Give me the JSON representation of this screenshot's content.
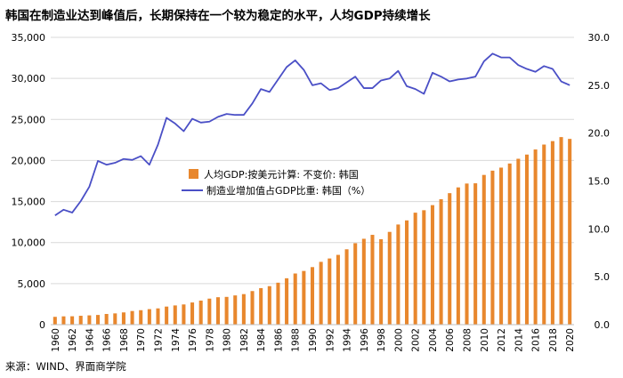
{
  "chart_data": {
    "type": "bar+line",
    "title": "韩国在制造业达到峰值后，长期保持在一个较为稳定的水平，人均GDP持续增长",
    "source": "来源：WIND、界面商学院",
    "x": [
      "1960",
      "1961",
      "1962",
      "1963",
      "1964",
      "1965",
      "1966",
      "1967",
      "1968",
      "1969",
      "1970",
      "1971",
      "1972",
      "1973",
      "1974",
      "1975",
      "1976",
      "1977",
      "1978",
      "1979",
      "1980",
      "1981",
      "1982",
      "1983",
      "1984",
      "1985",
      "1986",
      "1987",
      "1988",
      "1989",
      "1990",
      "1991",
      "1992",
      "1993",
      "1994",
      "1995",
      "1996",
      "1997",
      "1998",
      "1999",
      "2000",
      "2001",
      "2002",
      "2003",
      "2004",
      "2005",
      "2006",
      "2007",
      "2008",
      "2009",
      "2010",
      "2011",
      "2012",
      "2013",
      "2014",
      "2015",
      "2016",
      "2017",
      "2018",
      "2019",
      "2020"
    ],
    "x_tick_labels": [
      "1960",
      "1962",
      "1964",
      "1966",
      "1968",
      "1970",
      "1972",
      "1974",
      "1976",
      "1978",
      "1980",
      "1982",
      "1984",
      "1986",
      "1988",
      "1990",
      "1992",
      "1994",
      "1996",
      "1998",
      "2000",
      "2002",
      "2004",
      "2006",
      "2008",
      "2010",
      "2012",
      "2014",
      "2016",
      "2018",
      "2020"
    ],
    "series": [
      {
        "name": "人均GDP:按美元计算: 不变价: 韩国",
        "type": "bar",
        "axis": "left",
        "color": "#E8872D",
        "values": [
          950,
          1010,
          1020,
          1080,
          1130,
          1180,
          1300,
          1370,
          1490,
          1660,
          1760,
          1890,
          1980,
          2200,
          2340,
          2460,
          2700,
          2930,
          3170,
          3340,
          3380,
          3560,
          3720,
          4090,
          4450,
          4690,
          5110,
          5650,
          6230,
          6540,
          7010,
          7650,
          8060,
          8500,
          9180,
          9920,
          10460,
          10940,
          10410,
          11300,
          12200,
          12700,
          13640,
          13940,
          14560,
          15280,
          16020,
          16720,
          17190,
          17220,
          18240,
          18760,
          19130,
          19630,
          20210,
          20720,
          21340,
          21940,
          22360,
          22850,
          22630
        ]
      },
      {
        "name": "制造业增加值占GDP比重: 韩国（%）",
        "type": "line",
        "axis": "right",
        "color": "#4A4FC6",
        "values": [
          11.4,
          12.0,
          11.7,
          12.9,
          14.4,
          17.1,
          16.7,
          16.9,
          17.3,
          17.2,
          17.6,
          16.7,
          18.8,
          21.6,
          21.0,
          20.2,
          21.5,
          21.1,
          21.2,
          21.7,
          22.0,
          21.9,
          21.9,
          23.1,
          24.6,
          24.3,
          25.6,
          26.9,
          27.6,
          26.6,
          25.0,
          25.2,
          24.5,
          24.7,
          25.3,
          25.9,
          24.7,
          24.7,
          25.5,
          25.7,
          26.5,
          24.9,
          24.6,
          24.1,
          26.3,
          25.9,
          25.4,
          25.6,
          25.7,
          25.9,
          27.5,
          28.3,
          27.9,
          27.9,
          27.1,
          26.7,
          26.4,
          27.0,
          26.7,
          25.4,
          25.0
        ]
      }
    ],
    "y_left": {
      "min": 0,
      "max": 35000,
      "ticks": [
        "0",
        "5,000",
        "10,000",
        "15,000",
        "20,000",
        "25,000",
        "30,000",
        "35,000"
      ]
    },
    "y_right": {
      "min": 0,
      "max": 30,
      "ticks": [
        "0.0",
        "5.0",
        "10.0",
        "15.0",
        "20.0",
        "25.0",
        "30.0"
      ]
    },
    "grid": "horizontal",
    "legend_position": "center-left"
  }
}
